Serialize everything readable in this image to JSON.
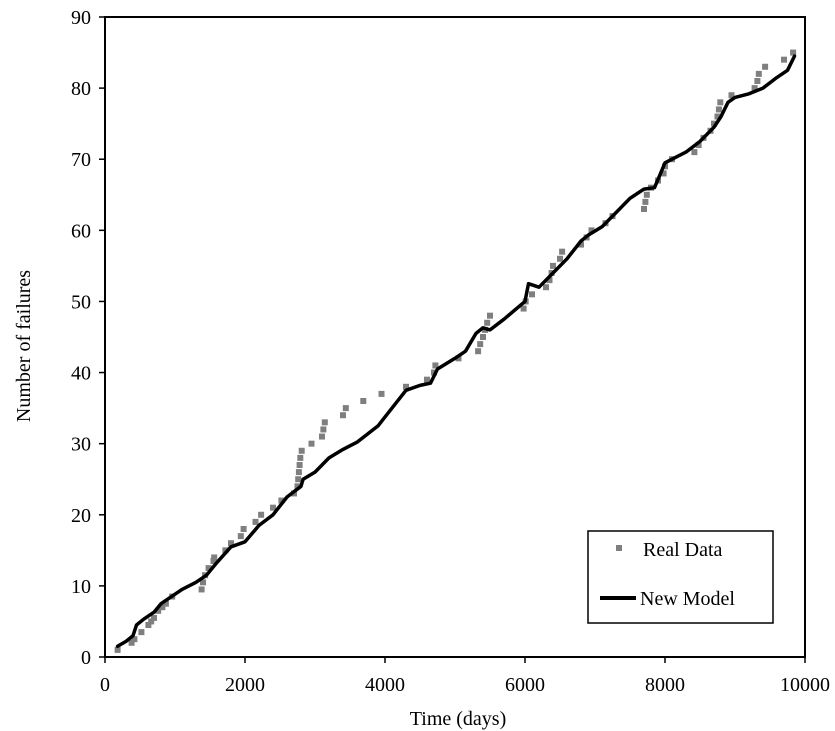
{
  "chart_data": {
    "type": "scatter",
    "title": "",
    "xlabel": "Time (days)",
    "ylabel": "Number of failures",
    "xlim": [
      0,
      10000
    ],
    "ylim": [
      0,
      90
    ],
    "x_ticks": [
      "0",
      "2000",
      "4000",
      "6000",
      "8000",
      "10000"
    ],
    "y_ticks": [
      "0",
      "10",
      "20",
      "30",
      "40",
      "50",
      "60",
      "70",
      "80",
      "90"
    ],
    "grid": false,
    "legend_position": "bottom-right",
    "series": [
      {
        "name": "Real Data",
        "kind": "points",
        "color": "#7f7f7f",
        "points": [
          [
            180,
            1
          ],
          [
            380,
            2
          ],
          [
            420,
            2.5
          ],
          [
            520,
            3.5
          ],
          [
            620,
            4.5
          ],
          [
            660,
            5
          ],
          [
            700,
            5.5
          ],
          [
            760,
            6.5
          ],
          [
            820,
            7
          ],
          [
            870,
            7.5
          ],
          [
            960,
            8.5
          ],
          [
            1380,
            9.5
          ],
          [
            1400,
            10.5
          ],
          [
            1430,
            11.5
          ],
          [
            1480,
            12.5
          ],
          [
            1550,
            13.5
          ],
          [
            1560,
            14
          ],
          [
            1720,
            15
          ],
          [
            1800,
            16
          ],
          [
            1940,
            17
          ],
          [
            1980,
            18
          ],
          [
            2150,
            19
          ],
          [
            2230,
            20
          ],
          [
            2400,
            21
          ],
          [
            2520,
            22
          ],
          [
            2700,
            23
          ],
          [
            2750,
            24
          ],
          [
            2760,
            25
          ],
          [
            2770,
            26
          ],
          [
            2780,
            27
          ],
          [
            2790,
            28
          ],
          [
            2810,
            29
          ],
          [
            2950,
            30
          ],
          [
            3100,
            31
          ],
          [
            3120,
            32
          ],
          [
            3140,
            33
          ],
          [
            3400,
            34
          ],
          [
            3440,
            35
          ],
          [
            3690,
            36
          ],
          [
            3950,
            37
          ],
          [
            4300,
            38
          ],
          [
            4600,
            39
          ],
          [
            4700,
            40
          ],
          [
            4720,
            41
          ],
          [
            5050,
            42
          ],
          [
            5330,
            43
          ],
          [
            5360,
            44
          ],
          [
            5400,
            45
          ],
          [
            5430,
            46
          ],
          [
            5460,
            47
          ],
          [
            5500,
            48
          ],
          [
            5980,
            49
          ],
          [
            6010,
            50
          ],
          [
            6100,
            51
          ],
          [
            6300,
            52
          ],
          [
            6350,
            53
          ],
          [
            6380,
            54
          ],
          [
            6400,
            55
          ],
          [
            6500,
            56
          ],
          [
            6530,
            57
          ],
          [
            6800,
            58
          ],
          [
            6880,
            59
          ],
          [
            6950,
            60
          ],
          [
            7150,
            61
          ],
          [
            7250,
            62
          ],
          [
            7700,
            63
          ],
          [
            7720,
            64
          ],
          [
            7740,
            65
          ],
          [
            7800,
            66
          ],
          [
            7900,
            67
          ],
          [
            7980,
            68
          ],
          [
            8000,
            69
          ],
          [
            8100,
            70
          ],
          [
            8420,
            71
          ],
          [
            8480,
            72
          ],
          [
            8550,
            73
          ],
          [
            8650,
            74
          ],
          [
            8700,
            75
          ],
          [
            8750,
            76
          ],
          [
            8770,
            77
          ],
          [
            8790,
            78
          ],
          [
            8950,
            79
          ],
          [
            9280,
            80
          ],
          [
            9320,
            81
          ],
          [
            9340,
            82
          ],
          [
            9430,
            83
          ],
          [
            9700,
            84
          ],
          [
            9830,
            85
          ]
        ]
      },
      {
        "name": "New Model",
        "kind": "line",
        "color": "#000000",
        "points": [
          [
            180,
            1.5
          ],
          [
            300,
            2.2
          ],
          [
            400,
            3
          ],
          [
            450,
            4.5
          ],
          [
            550,
            5.3
          ],
          [
            700,
            6.3
          ],
          [
            800,
            7.5
          ],
          [
            950,
            8.5
          ],
          [
            1100,
            9.5
          ],
          [
            1300,
            10.5
          ],
          [
            1450,
            11.5
          ],
          [
            1600,
            13.3
          ],
          [
            1800,
            15.5
          ],
          [
            2000,
            16.2
          ],
          [
            2200,
            18.5
          ],
          [
            2400,
            20
          ],
          [
            2600,
            22.5
          ],
          [
            2800,
            24
          ],
          [
            2830,
            25
          ],
          [
            3000,
            26
          ],
          [
            3200,
            28
          ],
          [
            3400,
            29.2
          ],
          [
            3600,
            30.2
          ],
          [
            3900,
            32.5
          ],
          [
            4100,
            35
          ],
          [
            4300,
            37.5
          ],
          [
            4500,
            38.2
          ],
          [
            4650,
            38.5
          ],
          [
            4750,
            40.5
          ],
          [
            5000,
            42
          ],
          [
            5150,
            43
          ],
          [
            5300,
            45.5
          ],
          [
            5400,
            46.3
          ],
          [
            5500,
            46
          ],
          [
            5700,
            47.5
          ],
          [
            6000,
            50
          ],
          [
            6050,
            52.5
          ],
          [
            6200,
            52
          ],
          [
            6400,
            54
          ],
          [
            6600,
            56
          ],
          [
            6800,
            58.5
          ],
          [
            6900,
            59.3
          ],
          [
            7100,
            60.5
          ],
          [
            7300,
            62.5
          ],
          [
            7500,
            64.5
          ],
          [
            7700,
            65.8
          ],
          [
            7850,
            66
          ],
          [
            8000,
            69.5
          ],
          [
            8100,
            70
          ],
          [
            8300,
            71
          ],
          [
            8500,
            72.5
          ],
          [
            8700,
            74.5
          ],
          [
            8800,
            76
          ],
          [
            8900,
            78
          ],
          [
            9000,
            78.7
          ],
          [
            9200,
            79.2
          ],
          [
            9400,
            80
          ],
          [
            9600,
            81.5
          ],
          [
            9750,
            82.5
          ],
          [
            9850,
            84.5
          ]
        ]
      }
    ]
  }
}
